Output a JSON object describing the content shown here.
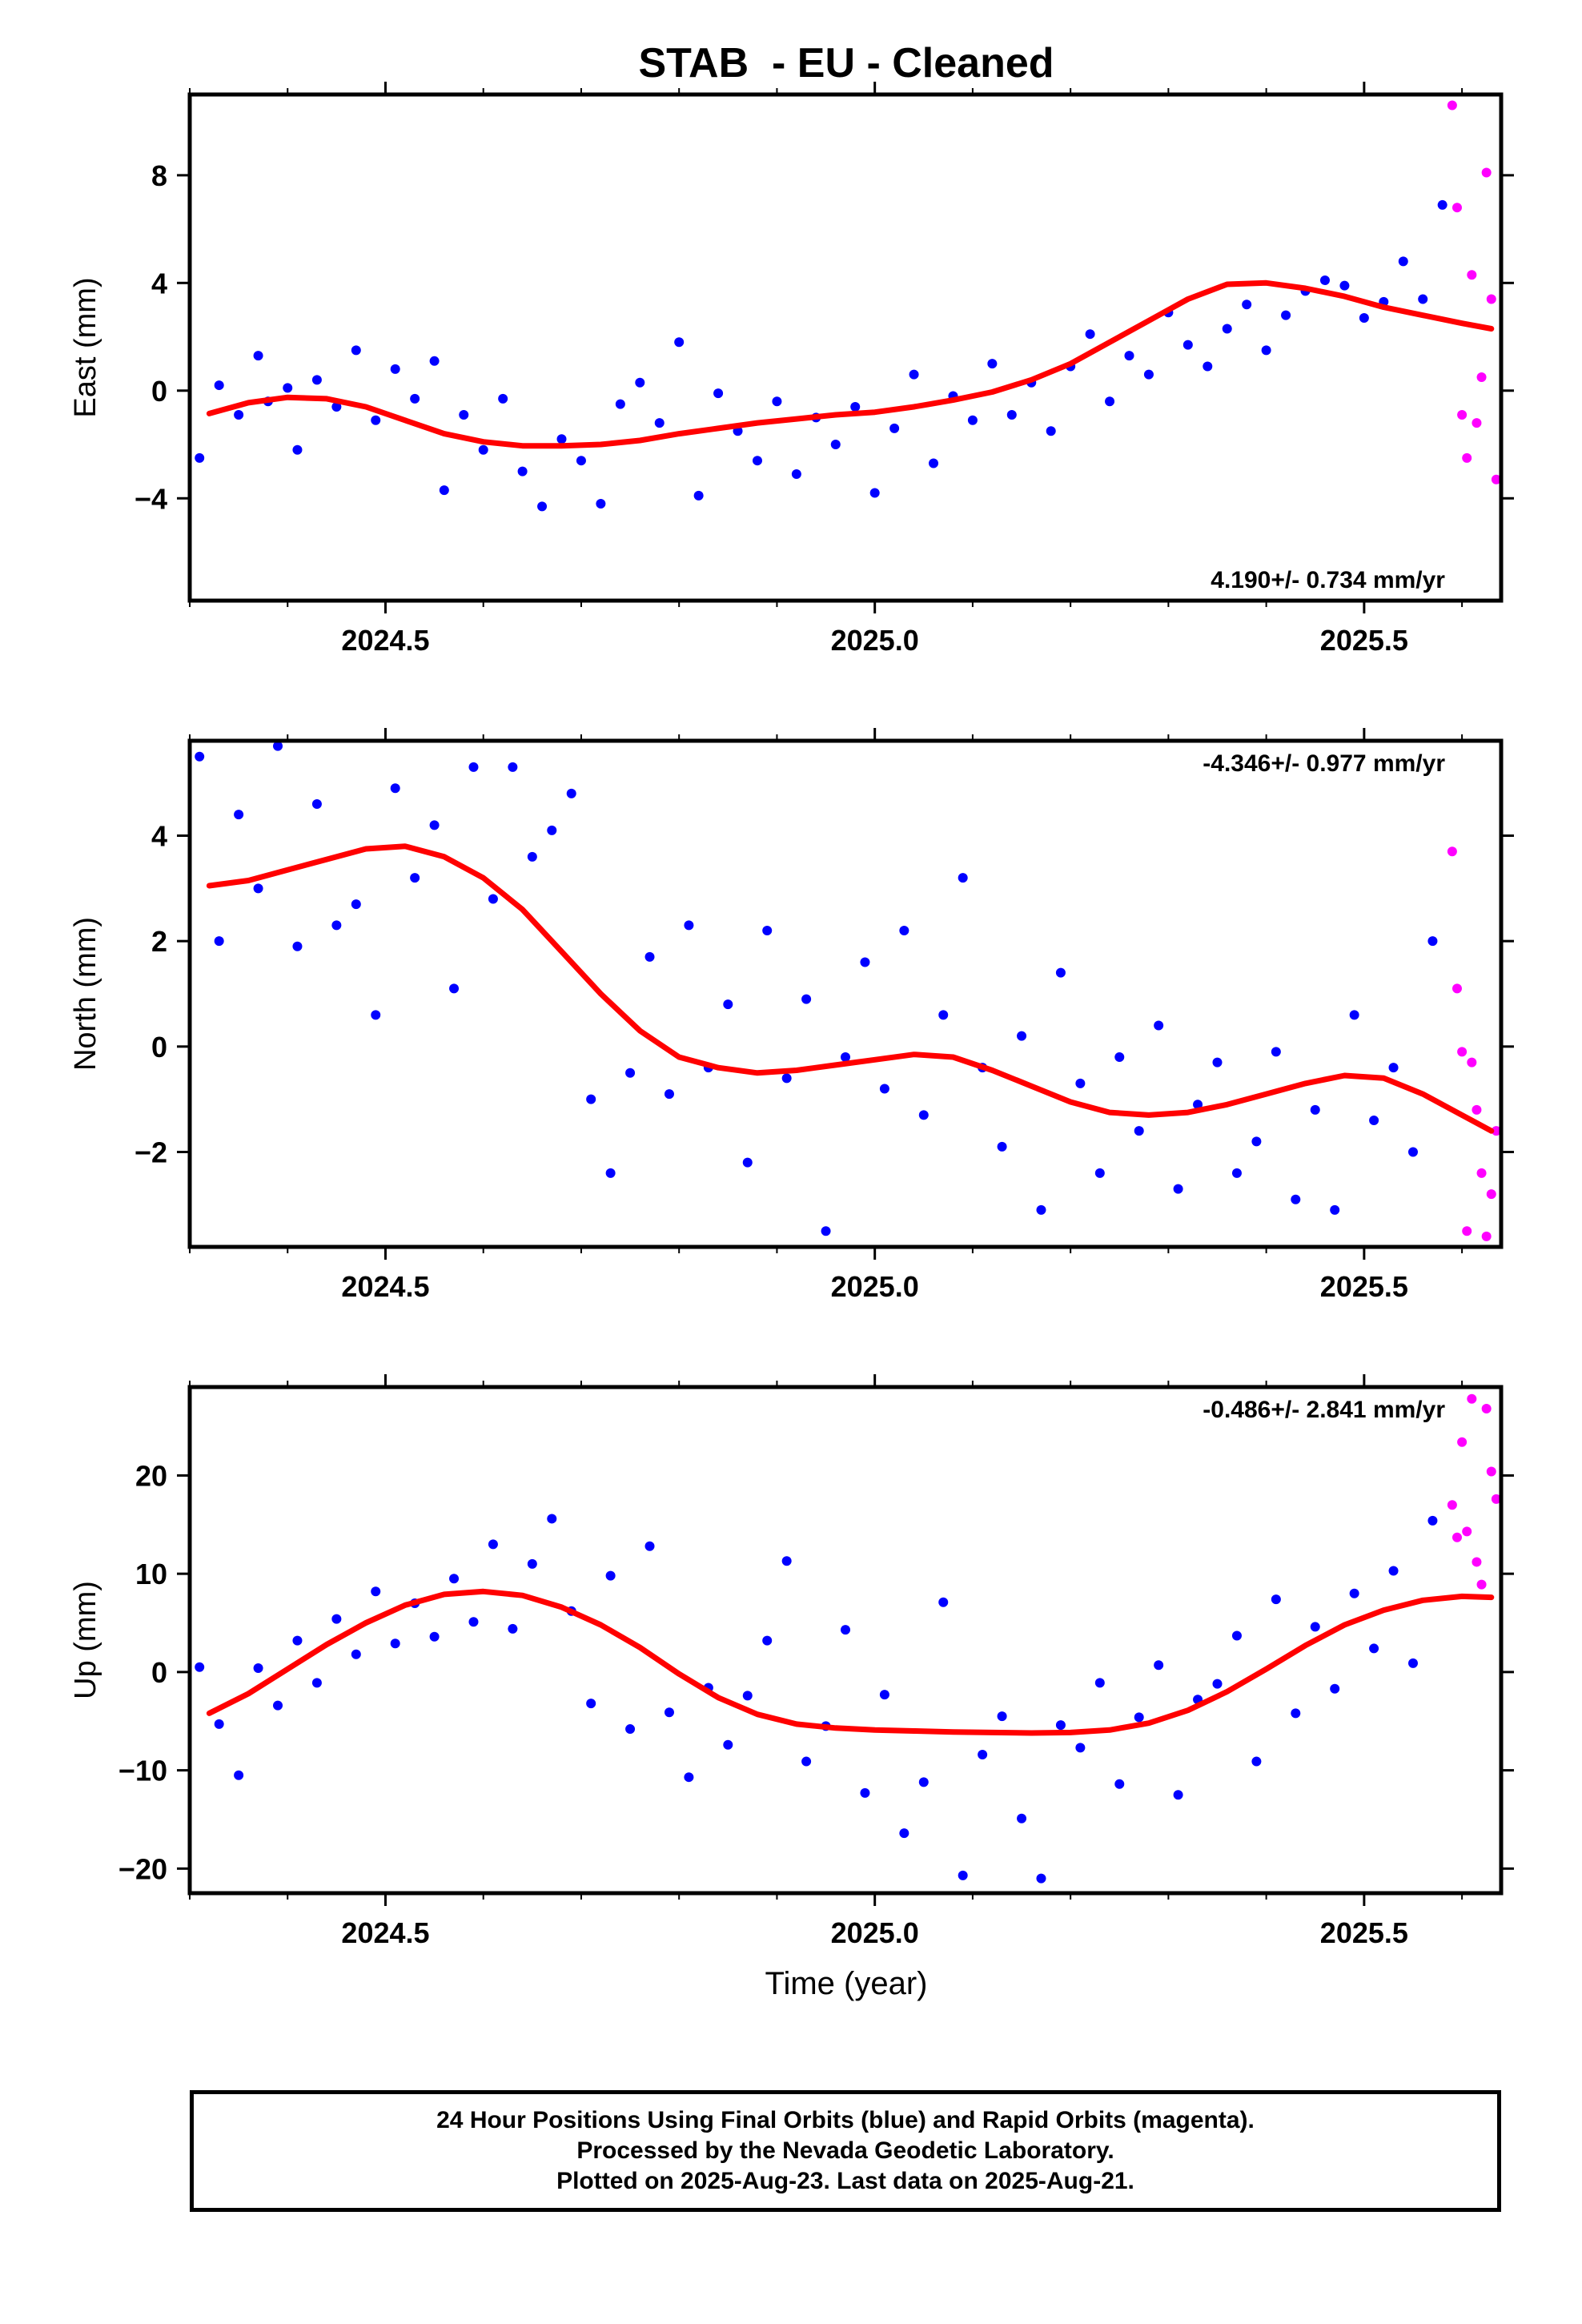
{
  "title": "STAB  - EU - Cleaned",
  "xlabel": "Time (year)",
  "footer": {
    "line1": "24 Hour Positions Using Final Orbits (blue) and Rapid Orbits (magenta).",
    "line2": "Processed by the Nevada Geodetic Laboratory.",
    "line3": "Plotted on 2025-Aug-23. Last data on 2025-Aug-21."
  },
  "colors": {
    "final": "#0000ff",
    "rapid": "#ff00ff",
    "fit": "#ff0000",
    "frame": "#000000"
  },
  "chart_data": [
    {
      "type": "scatter",
      "panel": "east",
      "ylabel": "East (mm)",
      "rate": "4.190+/- 0.734 mm/yr",
      "rate_placement": "bottom-right",
      "xlim": [
        2024.3,
        2025.64
      ],
      "ylim": [
        -7.8,
        11
      ],
      "xticks": [
        2024.5,
        2025.0,
        2025.5
      ],
      "xtick_labels": [
        "2024.5",
        "2025.0",
        "2025.5"
      ],
      "yticks": [
        -4,
        0,
        4,
        8
      ],
      "ytick_labels": [
        "−4",
        "0",
        "4",
        "8"
      ],
      "grid": false,
      "series": [
        {
          "name": "Final Orbits",
          "color": "#0000ff",
          "x": [
            2024.31,
            2024.33,
            2024.35,
            2024.37,
            2024.38,
            2024.4,
            2024.41,
            2024.43,
            2024.45,
            2024.47,
            2024.49,
            2024.51,
            2024.53,
            2024.55,
            2024.56,
            2024.58,
            2024.6,
            2024.62,
            2024.64,
            2024.66,
            2024.68,
            2024.7,
            2024.72,
            2024.74,
            2024.76,
            2024.78,
            2024.8,
            2024.82,
            2024.84,
            2024.86,
            2024.88,
            2024.9,
            2024.92,
            2024.94,
            2024.96,
            2024.98,
            2025.0,
            2025.02,
            2025.04,
            2025.06,
            2025.08,
            2025.1,
            2025.12,
            2025.14,
            2025.16,
            2025.18,
            2025.2,
            2025.22,
            2025.24,
            2025.26,
            2025.28,
            2025.3,
            2025.32,
            2025.34,
            2025.36,
            2025.38,
            2025.4,
            2025.42,
            2025.44,
            2025.46,
            2025.48,
            2025.5,
            2025.52,
            2025.54,
            2025.56,
            2025.58
          ],
          "y": [
            -2.5,
            0.2,
            -0.9,
            1.3,
            -0.4,
            0.1,
            -2.2,
            0.4,
            -0.6,
            1.5,
            -1.1,
            0.8,
            -0.3,
            1.1,
            -3.7,
            -0.9,
            -2.2,
            -0.3,
            -3.0,
            -4.3,
            -1.8,
            -2.6,
            -4.2,
            -0.5,
            0.3,
            -1.2,
            1.8,
            -3.9,
            -0.1,
            -1.5,
            -2.6,
            -0.4,
            -3.1,
            -1.0,
            -2.0,
            -0.6,
            -3.8,
            -1.4,
            0.6,
            -2.7,
            -0.2,
            -1.1,
            1.0,
            -0.9,
            0.3,
            -1.5,
            0.9,
            2.1,
            -0.4,
            1.3,
            0.6,
            2.9,
            1.7,
            0.9,
            2.3,
            3.2,
            1.5,
            2.8,
            3.7,
            4.1,
            3.9,
            2.7,
            3.3,
            4.8,
            3.4,
            6.9
          ]
        },
        {
          "name": "Rapid Orbits",
          "color": "#ff00ff",
          "x": [
            2025.59,
            2025.595,
            2025.6,
            2025.605,
            2025.61,
            2025.615,
            2025.62,
            2025.625,
            2025.63,
            2025.635
          ],
          "y": [
            10.6,
            6.8,
            -0.9,
            -2.5,
            4.3,
            -1.2,
            0.5,
            8.1,
            3.4,
            -3.3
          ]
        }
      ],
      "fit": {
        "x": [
          2024.32,
          2024.36,
          2024.4,
          2024.44,
          2024.48,
          2024.52,
          2024.56,
          2024.6,
          2024.64,
          2024.68,
          2024.72,
          2024.76,
          2024.8,
          2024.84,
          2024.88,
          2024.92,
          2024.96,
          2025.0,
          2025.04,
          2025.08,
          2025.12,
          2025.16,
          2025.2,
          2025.24,
          2025.28,
          2025.32,
          2025.36,
          2025.4,
          2025.44,
          2025.48,
          2025.52,
          2025.56,
          2025.6,
          2025.63
        ],
        "y": [
          -0.85,
          -0.45,
          -0.25,
          -0.3,
          -0.6,
          -1.1,
          -1.6,
          -1.9,
          -2.05,
          -2.05,
          -2.0,
          -1.85,
          -1.6,
          -1.4,
          -1.2,
          -1.05,
          -0.9,
          -0.8,
          -0.6,
          -0.35,
          -0.05,
          0.4,
          1.0,
          1.8,
          2.6,
          3.4,
          3.95,
          4.0,
          3.8,
          3.5,
          3.1,
          2.8,
          2.5,
          2.3
        ]
      }
    },
    {
      "type": "scatter",
      "panel": "north",
      "ylabel": "North (mm)",
      "rate": "-4.346+/- 0.977 mm/yr",
      "rate_placement": "top-right",
      "xlim": [
        2024.3,
        2025.64
      ],
      "ylim": [
        -3.8,
        5.8
      ],
      "xticks": [
        2024.5,
        2025.0,
        2025.5
      ],
      "xtick_labels": [
        "2024.5",
        "2025.0",
        "2025.5"
      ],
      "yticks": [
        -2,
        0,
        2,
        4
      ],
      "ytick_labels": [
        "−2",
        "0",
        "2",
        "4"
      ],
      "grid": false,
      "series": [
        {
          "name": "Final Orbits",
          "color": "#0000ff",
          "x": [
            2024.31,
            2024.33,
            2024.35,
            2024.37,
            2024.39,
            2024.41,
            2024.43,
            2024.45,
            2024.47,
            2024.49,
            2024.51,
            2024.53,
            2024.55,
            2024.57,
            2024.59,
            2024.61,
            2024.63,
            2024.65,
            2024.67,
            2024.69,
            2024.71,
            2024.73,
            2024.75,
            2024.77,
            2024.79,
            2024.81,
            2024.83,
            2024.85,
            2024.87,
            2024.89,
            2024.91,
            2024.93,
            2024.95,
            2024.97,
            2024.99,
            2025.01,
            2025.03,
            2025.05,
            2025.07,
            2025.09,
            2025.11,
            2025.13,
            2025.15,
            2025.17,
            2025.19,
            2025.21,
            2025.23,
            2025.25,
            2025.27,
            2025.29,
            2025.31,
            2025.33,
            2025.35,
            2025.37,
            2025.39,
            2025.41,
            2025.43,
            2025.45,
            2025.47,
            2025.49,
            2025.51,
            2025.53,
            2025.55,
            2025.57
          ],
          "y": [
            5.5,
            2.0,
            4.4,
            3.0,
            5.7,
            1.9,
            4.6,
            2.3,
            2.7,
            0.6,
            4.9,
            3.2,
            4.2,
            1.1,
            5.3,
            2.8,
            5.3,
            3.6,
            4.1,
            4.8,
            -1.0,
            -2.4,
            -0.5,
            1.7,
            -0.9,
            2.3,
            -0.4,
            0.8,
            -2.2,
            2.2,
            -0.6,
            0.9,
            -3.5,
            -0.2,
            1.6,
            -0.8,
            2.2,
            -1.3,
            0.6,
            3.2,
            -0.4,
            -1.9,
            0.2,
            -3.1,
            1.4,
            -0.7,
            -2.4,
            -0.2,
            -1.6,
            0.4,
            -2.7,
            -1.1,
            -0.3,
            -2.4,
            -1.8,
            -0.1,
            -2.9,
            -1.2,
            -3.1,
            0.6,
            -1.4,
            -0.4,
            -2.0,
            2.0
          ]
        },
        {
          "name": "Rapid Orbits",
          "color": "#ff00ff",
          "x": [
            2025.59,
            2025.595,
            2025.6,
            2025.605,
            2025.61,
            2025.615,
            2025.62,
            2025.625,
            2025.63,
            2025.635
          ],
          "y": [
            3.7,
            1.1,
            -0.1,
            -3.5,
            -0.3,
            -1.2,
            -2.4,
            -3.6,
            -2.8,
            -1.6
          ]
        }
      ],
      "fit": {
        "x": [
          2024.32,
          2024.36,
          2024.4,
          2024.44,
          2024.48,
          2024.52,
          2024.56,
          2024.6,
          2024.64,
          2024.68,
          2024.72,
          2024.76,
          2024.8,
          2024.84,
          2024.88,
          2024.92,
          2024.96,
          2025.0,
          2025.04,
          2025.08,
          2025.12,
          2025.16,
          2025.2,
          2025.24,
          2025.28,
          2025.32,
          2025.36,
          2025.4,
          2025.44,
          2025.48,
          2025.52,
          2025.56,
          2025.6,
          2025.63
        ],
        "y": [
          3.05,
          3.15,
          3.35,
          3.55,
          3.75,
          3.8,
          3.6,
          3.2,
          2.6,
          1.8,
          1.0,
          0.3,
          -0.2,
          -0.4,
          -0.5,
          -0.45,
          -0.35,
          -0.25,
          -0.15,
          -0.2,
          -0.45,
          -0.75,
          -1.05,
          -1.25,
          -1.3,
          -1.25,
          -1.1,
          -0.9,
          -0.7,
          -0.55,
          -0.6,
          -0.9,
          -1.3,
          -1.6
        ]
      }
    },
    {
      "type": "scatter",
      "panel": "up",
      "ylabel": "Up (mm)",
      "rate": "-0.486+/- 2.841 mm/yr",
      "rate_placement": "top-right",
      "xlim": [
        2024.3,
        2025.64
      ],
      "ylim": [
        -22.5,
        29
      ],
      "xticks": [
        2024.5,
        2025.0,
        2025.5
      ],
      "xtick_labels": [
        "2024.5",
        "2025.0",
        "2025.5"
      ],
      "yticks": [
        -20,
        -10,
        0,
        10,
        20
      ],
      "ytick_labels": [
        "−20",
        "−10",
        "0",
        "10",
        "20"
      ],
      "grid": false,
      "series": [
        {
          "name": "Final Orbits",
          "color": "#0000ff",
          "x": [
            2024.31,
            2024.33,
            2024.35,
            2024.37,
            2024.39,
            2024.41,
            2024.43,
            2024.45,
            2024.47,
            2024.49,
            2024.51,
            2024.53,
            2024.55,
            2024.57,
            2024.59,
            2024.61,
            2024.63,
            2024.65,
            2024.67,
            2024.69,
            2024.71,
            2024.73,
            2024.75,
            2024.77,
            2024.79,
            2024.81,
            2024.83,
            2024.85,
            2024.87,
            2024.89,
            2024.91,
            2024.93,
            2024.95,
            2024.97,
            2024.99,
            2025.01,
            2025.03,
            2025.05,
            2025.07,
            2025.09,
            2025.11,
            2025.13,
            2025.15,
            2025.17,
            2025.19,
            2025.21,
            2025.23,
            2025.25,
            2025.27,
            2025.29,
            2025.31,
            2025.33,
            2025.35,
            2025.37,
            2025.39,
            2025.41,
            2025.43,
            2025.45,
            2025.47,
            2025.49,
            2025.51,
            2025.53,
            2025.55,
            2025.57
          ],
          "y": [
            0.5,
            -5.3,
            -10.5,
            0.4,
            -3.4,
            3.2,
            -1.1,
            5.4,
            1.8,
            8.2,
            2.9,
            7.0,
            3.6,
            9.5,
            5.1,
            13.0,
            4.4,
            11.0,
            15.6,
            6.2,
            -3.2,
            9.8,
            -5.8,
            12.8,
            -4.1,
            -10.7,
            -1.6,
            -7.4,
            -2.4,
            3.2,
            11.3,
            -9.1,
            -5.5,
            4.3,
            -12.3,
            -2.3,
            -16.4,
            -11.2,
            7.1,
            -20.7,
            -8.4,
            -4.5,
            -14.9,
            -21.0,
            -5.4,
            -7.7,
            -1.1,
            -11.4,
            -4.6,
            0.7,
            -12.5,
            -2.8,
            -1.2,
            3.7,
            -9.1,
            7.4,
            -4.2,
            4.6,
            -1.7,
            8.0,
            2.4,
            10.3,
            0.9,
            15.4
          ]
        },
        {
          "name": "Rapid Orbits",
          "color": "#ff00ff",
          "x": [
            2025.59,
            2025.595,
            2025.6,
            2025.605,
            2025.61,
            2025.615,
            2025.62,
            2025.625,
            2025.63,
            2025.635
          ],
          "y": [
            17.0,
            13.7,
            23.4,
            14.3,
            27.8,
            11.2,
            8.9,
            26.8,
            20.4,
            17.6
          ]
        }
      ],
      "fit": {
        "x": [
          2024.32,
          2024.36,
          2024.4,
          2024.44,
          2024.48,
          2024.52,
          2024.56,
          2024.6,
          2024.64,
          2024.68,
          2024.72,
          2024.76,
          2024.8,
          2024.84,
          2024.88,
          2024.92,
          2024.96,
          2025.0,
          2025.04,
          2025.08,
          2025.12,
          2025.16,
          2025.2,
          2025.24,
          2025.28,
          2025.32,
          2025.36,
          2025.4,
          2025.44,
          2025.48,
          2025.52,
          2025.56,
          2025.6,
          2025.63
        ],
        "y": [
          -4.2,
          -2.2,
          0.3,
          2.8,
          5.0,
          6.8,
          7.9,
          8.2,
          7.8,
          6.6,
          4.8,
          2.5,
          -0.2,
          -2.6,
          -4.3,
          -5.3,
          -5.7,
          -5.9,
          -6.0,
          -6.1,
          -6.15,
          -6.2,
          -6.15,
          -5.9,
          -5.2,
          -3.9,
          -2.0,
          0.3,
          2.7,
          4.8,
          6.3,
          7.3,
          7.7,
          7.6
        ]
      }
    }
  ]
}
